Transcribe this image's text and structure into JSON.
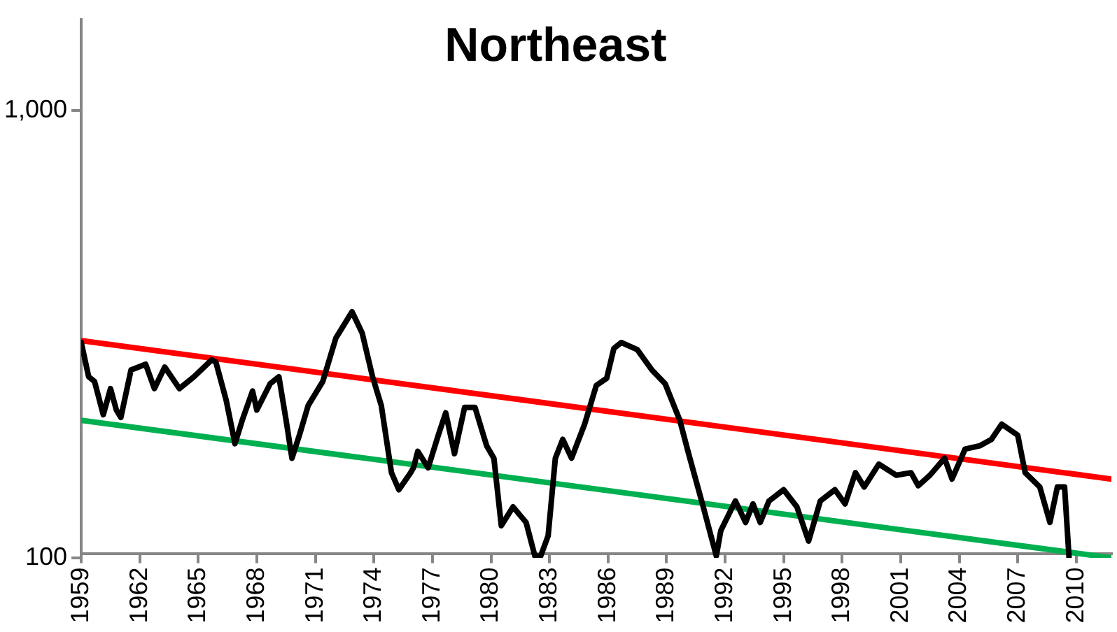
{
  "chart_data": {
    "type": "line",
    "title": "Northeast",
    "log": "y",
    "grid": false,
    "legend": false,
    "marker": "none",
    "line_style": "solid",
    "xlim": [
      1959,
      2011.8
    ],
    "xticks": [
      1959,
      1962,
      1965,
      1968,
      1971,
      1974,
      1977,
      1980,
      1983,
      1986,
      1989,
      1992,
      1995,
      1998,
      2001,
      2004,
      2007,
      2010
    ],
    "ylim": [
      100,
      1600
    ],
    "yticks": [
      100,
      {
        "value": 1000,
        "label": "1,000"
      }
    ],
    "series": [
      {
        "color": "#000000",
        "x": [
          1959.0,
          1959.38,
          1959.68,
          1960.13,
          1960.5,
          1960.8,
          1961.03,
          1961.55,
          1962.3,
          1962.75,
          1963.28,
          1964.03,
          1964.78,
          1965.68,
          1965.9,
          1966.43,
          1966.88,
          1967.25,
          1967.78,
          1968.0,
          1968.68,
          1969.13,
          1969.5,
          1969.8,
          1970.18,
          1970.63,
          1971.38,
          1972.05,
          1972.88,
          1973.4,
          1973.93,
          1974.38,
          1974.9,
          1975.28,
          1975.88,
          1976.03,
          1976.25,
          1976.78,
          1977.3,
          1977.68,
          1978.13,
          1978.65,
          1979.18,
          1979.78,
          1980.15,
          1980.53,
          1981.13,
          1981.8,
          1982.25,
          1982.55,
          1982.93,
          1983.3,
          1983.68,
          1984.13,
          1984.8,
          1985.4,
          1985.93,
          1986.3,
          1986.68,
          1987.5,
          1988.25,
          1988.93,
          1989.68,
          1990.13,
          1990.88,
          1991.55,
          1991.78,
          1992.53,
          1993.05,
          1993.43,
          1993.8,
          1994.25,
          1995.0,
          1995.68,
          1996.28,
          1996.88,
          1997.63,
          1998.15,
          1998.68,
          1999.13,
          1999.88,
          2000.78,
          2001.53,
          2001.9,
          2002.5,
          2003.25,
          2003.63,
          2004.3,
          2005.05,
          2005.65,
          2006.18,
          2007.0,
          2007.38,
          2008.13,
          2008.65,
          2009.03,
          2009.4,
          2009.63
        ],
        "values": [
          303,
          254,
          248,
          209,
          239,
          214,
          206,
          263,
          271,
          239,
          267,
          239,
          254,
          277,
          274,
          225,
          180,
          203,
          236,
          214,
          245,
          254,
          203,
          167,
          188,
          219,
          248,
          310,
          355,
          318,
          254,
          219,
          155,
          142,
          155,
          159,
          173,
          159,
          188,
          211,
          171,
          217,
          217,
          178,
          167,
          118,
          130,
          120,
          101,
          101,
          112,
          167,
          184,
          167,
          199,
          243,
          252,
          294,
          303,
          292,
          263,
          245,
          203,
          171,
          130,
          101,
          115,
          134,
          120,
          132,
          120,
          134,
          142,
          130,
          109,
          134,
          142,
          132,
          155,
          144,
          162,
          153,
          155,
          145,
          153,
          167,
          150,
          175,
          178,
          184,
          199,
          188,
          155,
          144,
          120,
          144,
          144,
          100
        ]
      },
      {
        "type": "line",
        "color": "#ff0000",
        "x": [
          1959,
          2011.8
        ],
        "values": [
          306,
          150
        ]
      },
      {
        "type": "line",
        "color": "#00b050",
        "x": [
          1959,
          2011.8
        ],
        "values": [
          203,
          100
        ]
      }
    ]
  }
}
